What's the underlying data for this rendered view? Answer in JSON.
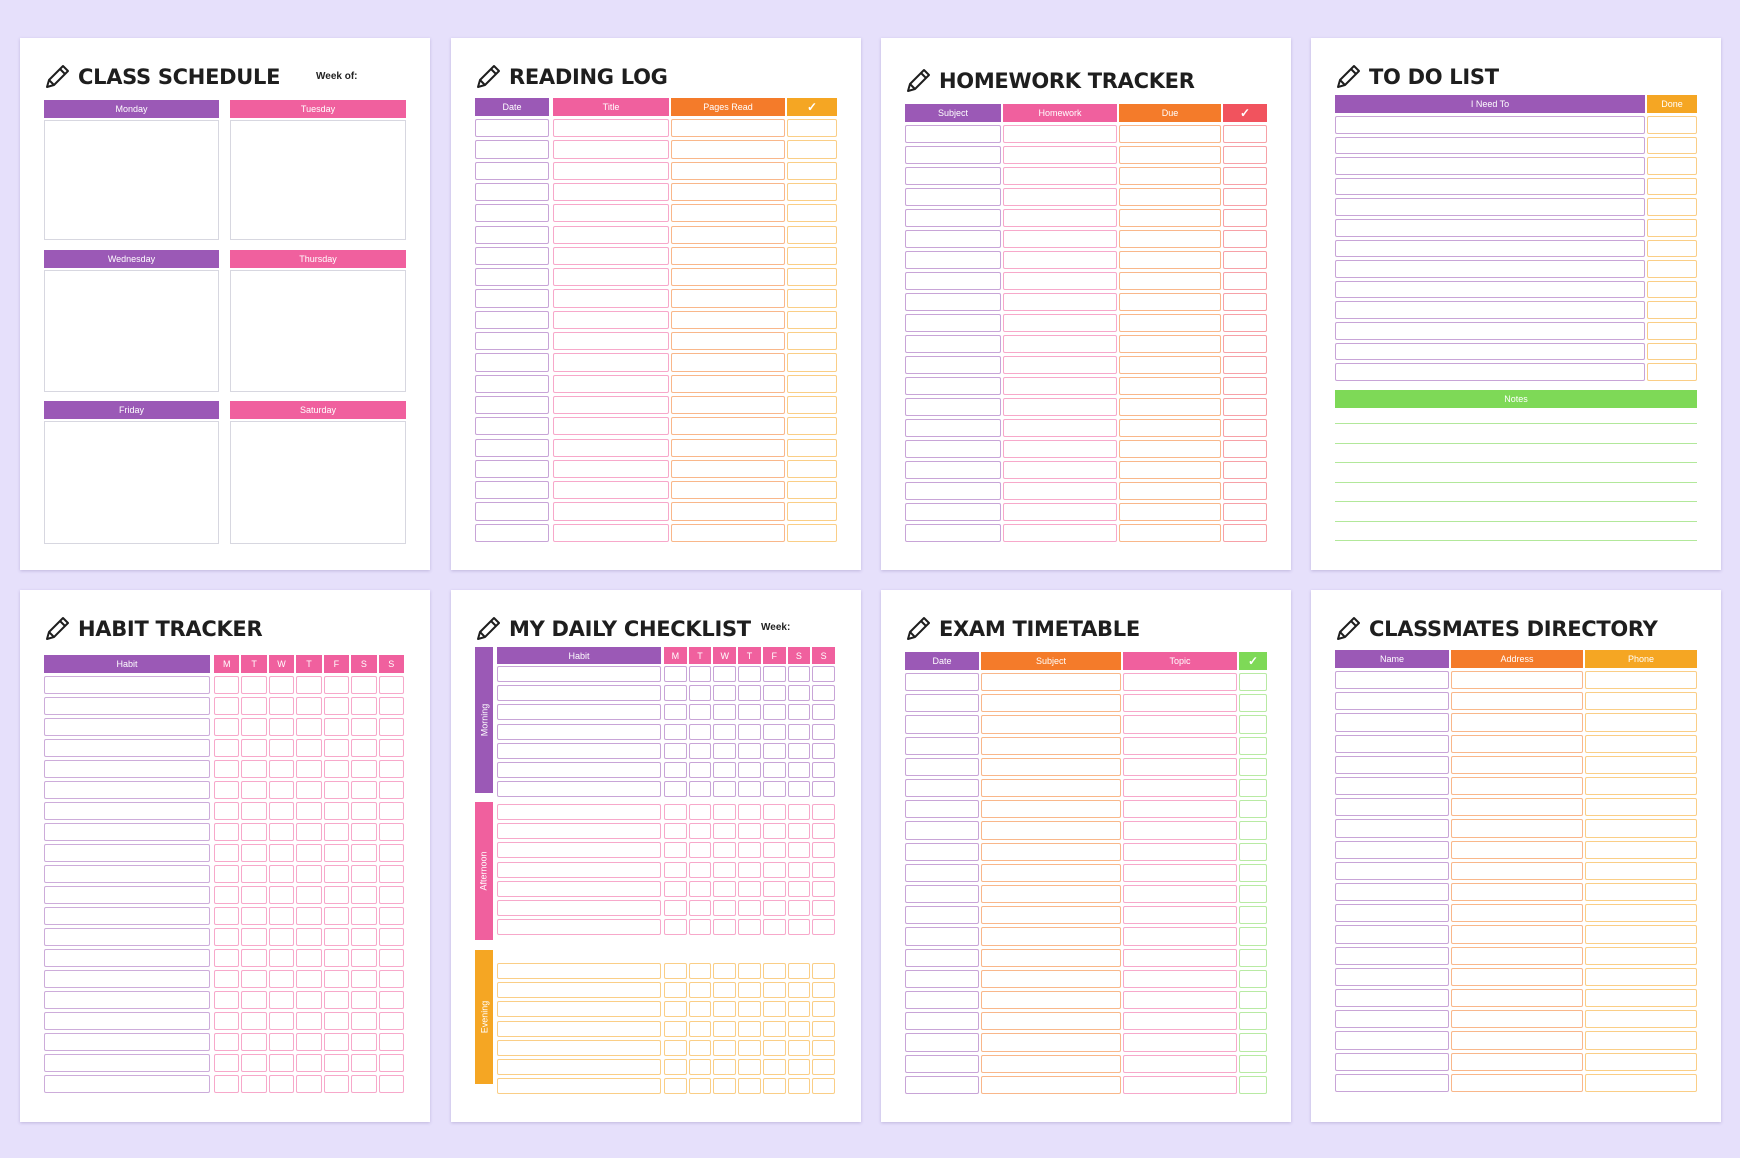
{
  "colors": {
    "purple": "#9b59b6",
    "pink": "#f0609e",
    "orange": "#f47b2a",
    "amber": "#f5a623",
    "green": "#7ed957",
    "red": "#f1535e",
    "background": "#e6e0fb"
  },
  "class_schedule": {
    "title": "CLASS SCHEDULE",
    "week_label": "Week of:",
    "days": [
      "Monday",
      "Tuesday",
      "Wednesday",
      "Thursday",
      "Friday",
      "Saturday"
    ]
  },
  "reading_log": {
    "title": "READING LOG",
    "columns": [
      "Date",
      "Title",
      "Pages Read",
      "✓"
    ]
  },
  "homework_tracker": {
    "title": "HOMEWORK TRACKER",
    "columns": [
      "Subject",
      "Homework",
      "Due",
      "✓"
    ]
  },
  "to_do_list": {
    "title": "TO DO LIST",
    "columns": [
      "I Need To",
      "Done"
    ],
    "notes_label": "Notes"
  },
  "habit_tracker": {
    "title": "HABIT TRACKER",
    "habit_label": "Habit",
    "days": [
      "M",
      "T",
      "W",
      "T",
      "F",
      "S",
      "S"
    ]
  },
  "daily_checklist": {
    "title": "MY DAILY CHECKLIST",
    "week_label": "Week:",
    "habit_label": "Habit",
    "days": [
      "M",
      "T",
      "W",
      "T",
      "F",
      "S",
      "S"
    ],
    "sections": [
      "Morning",
      "Afternoon",
      "Evening"
    ]
  },
  "exam_timetable": {
    "title": "EXAM TIMETABLE",
    "columns": [
      "Date",
      "Subject",
      "Topic",
      "✓"
    ]
  },
  "classmates_directory": {
    "title": "CLASSMATES DIRECTORY",
    "columns": [
      "Name",
      "Address",
      "Phone"
    ]
  }
}
